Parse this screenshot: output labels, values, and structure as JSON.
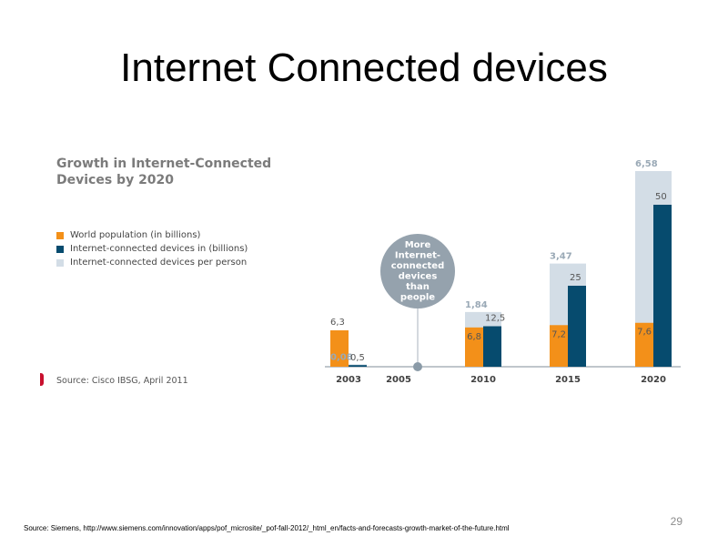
{
  "slide": {
    "title": "Internet Connected devices",
    "number": "29",
    "footer_source": "Source: Siemens, http://www.siemens.com/innovation/apps/pof_microsite/_pof-fall-2012/_html_en/facts-and-forecasts-growth-market-of-the-future.html"
  },
  "chart_data": {
    "type": "bar",
    "title": "Growth in Internet-Connected Devices by 2020",
    "source": "Source: Cisco IBSG, April 2011",
    "categories": [
      "2003",
      "2005",
      "2010",
      "2015",
      "2020"
    ],
    "series": [
      {
        "name": "World population (in billions)",
        "color": "#f39019",
        "values": [
          6.3,
          null,
          6.8,
          7.2,
          7.6
        ],
        "labels": [
          "6,3",
          "",
          "6,8",
          "7,2",
          "7,6"
        ]
      },
      {
        "name": "Internet-connected devices in (billions)",
        "color": "#064b6e",
        "values": [
          0.5,
          null,
          12.5,
          25,
          50
        ],
        "labels": [
          "0,5",
          "",
          "12,5",
          "25",
          "50"
        ]
      },
      {
        "name": "Internet-connected devices per person",
        "color": "#d3dde6",
        "values": [
          0.08,
          null,
          1.84,
          3.47,
          6.58
        ],
        "labels": [
          "0,08",
          "",
          "1,84",
          "3,47",
          "6,58"
        ]
      }
    ],
    "annotation": {
      "text_lines": [
        "More",
        "Internet-",
        "connected",
        "devices",
        "than",
        "people"
      ],
      "category": "2005",
      "bubble_color": "#95a2ad",
      "marker_color": "#8a9aa7"
    },
    "legend_position": "left",
    "grid": false
  }
}
